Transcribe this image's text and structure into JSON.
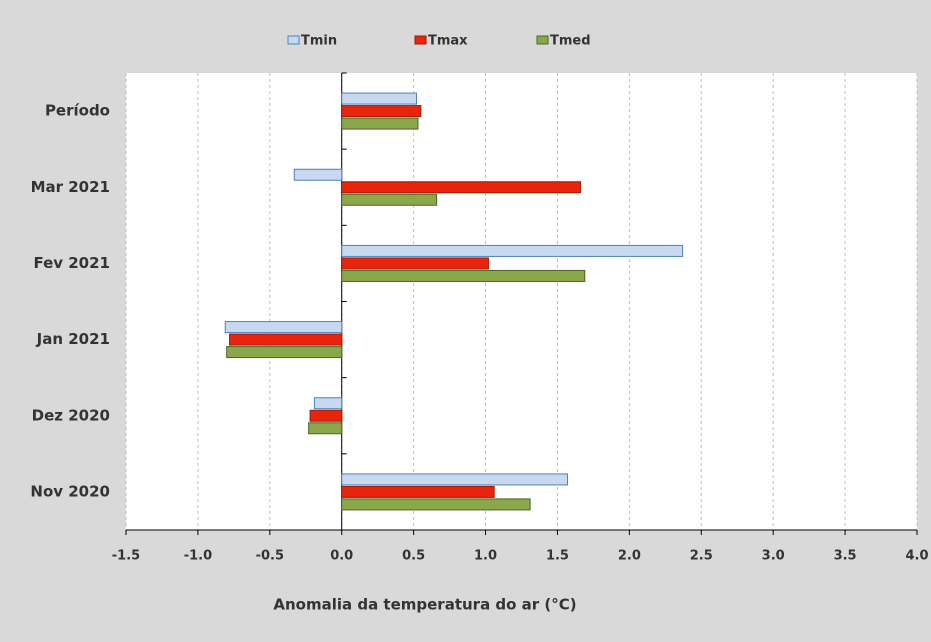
{
  "chart_data": {
    "type": "hbar",
    "x_label": "Anomalia da temperatura  do ar (°C)",
    "categories": [
      "Período",
      "Mar 2021",
      "Fev 2021",
      "Jan 2021",
      "Dez 2020",
      "Nov 2020"
    ],
    "series": [
      {
        "name": "Tmin",
        "color": "#c6d9f1",
        "values": [
          0.52,
          -0.33,
          2.37,
          -0.81,
          -0.19,
          1.57
        ]
      },
      {
        "name": "Tmax",
        "color": "#e8250c",
        "values": [
          0.55,
          1.66,
          1.02,
          -0.78,
          -0.22,
          1.06
        ]
      },
      {
        "name": "Tmed",
        "color": "#8aa84a",
        "values": [
          0.53,
          0.66,
          1.69,
          -0.8,
          -0.23,
          1.31
        ]
      }
    ],
    "xlim": [
      -1.5,
      4.0
    ],
    "xticks": [
      -1.5,
      {
        "value": -1.0,
        "label": "-1.0"
      },
      -0.5,
      {
        "value": 0.0,
        "label": "0.0"
      },
      0.5,
      {
        "value": 1.0,
        "label": "1.0"
      },
      1.5,
      {
        "value": 2.0,
        "label": "2.0"
      },
      2.5,
      {
        "value": 3.0,
        "label": "3.0"
      },
      3.5,
      {
        "value": 4.0,
        "label": "4.0"
      }
    ],
    "grid": true
  }
}
